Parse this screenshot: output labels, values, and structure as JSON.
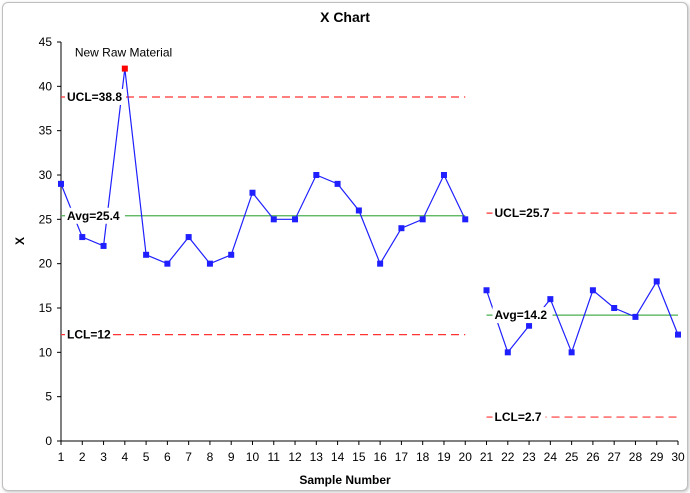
{
  "chart_data": {
    "type": "line",
    "title": "X Chart",
    "xlabel": "Sample Number",
    "ylabel": "X",
    "xlim": [
      1,
      30
    ],
    "ylim": [
      0,
      45
    ],
    "yticks": [
      0,
      5,
      10,
      15,
      20,
      25,
      30,
      35,
      40,
      45
    ],
    "x_ticks": [
      1,
      2,
      3,
      4,
      5,
      6,
      7,
      8,
      9,
      10,
      11,
      12,
      13,
      14,
      15,
      16,
      17,
      18,
      19,
      20,
      21,
      22,
      23,
      24,
      25,
      26,
      27,
      28,
      29,
      30
    ],
    "grid": false,
    "colors": {
      "series": "#1f1fff",
      "limits": "#ff3333",
      "average": "#4caf50",
      "out_of_control": "#ff0000"
    },
    "segments": [
      {
        "x": [
          1,
          2,
          3,
          4,
          5,
          6,
          7,
          8,
          9,
          10,
          11,
          12,
          13,
          14,
          15,
          16,
          17,
          18,
          19,
          20
        ],
        "values": [
          29,
          23,
          22,
          42,
          21,
          20,
          23,
          20,
          21,
          28,
          25,
          25,
          30,
          29,
          26,
          20,
          24,
          25,
          30,
          25
        ],
        "ucl": 38.8,
        "avg": 25.4,
        "lcl": 12,
        "ucl_label": "UCL=38.8",
        "avg_label": "Avg=25.4",
        "lcl_label": "LCL=12"
      },
      {
        "x": [
          21,
          22,
          23,
          24,
          25,
          26,
          27,
          28,
          29,
          30
        ],
        "values": [
          17,
          10,
          13,
          16,
          10,
          17,
          15,
          14,
          18,
          12
        ],
        "ucl": 25.7,
        "avg": 14.2,
        "lcl": 2.7,
        "ucl_label": "UCL=25.7",
        "avg_label": "Avg=14.2",
        "lcl_label": "LCL=2.7"
      }
    ],
    "annotations": [
      {
        "text": "New Raw Material",
        "x": 4,
        "y": 42
      }
    ],
    "out_of_control_points": [
      {
        "x": 4,
        "y": 42
      }
    ]
  }
}
